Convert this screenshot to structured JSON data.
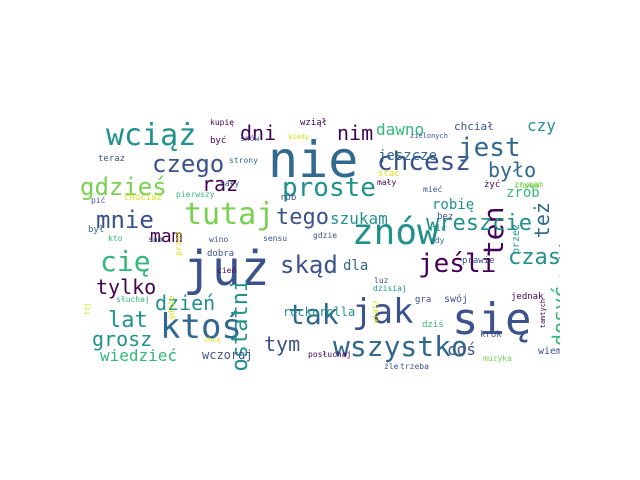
{
  "title": "Word cloud (Polish words)",
  "palette": {
    "dark_purple": "#440154",
    "indigo": "#3b528b",
    "blue": "#31688e",
    "teal": "#21918c",
    "green": "#35b779",
    "lime": "#7ad151",
    "yellow": "#d8e219"
  },
  "words": [
    {
      "text": "nie",
      "color": "#31688e",
      "rotated": false
    },
    {
      "text": "już",
      "color": "#3b528b",
      "rotated": false
    },
    {
      "text": "się",
      "color": "#3b528b",
      "rotated": false
    },
    {
      "text": "znów",
      "color": "#21918c",
      "rotated": false
    },
    {
      "text": "jak",
      "color": "#3b528b",
      "rotated": false
    },
    {
      "text": "ktoś",
      "color": "#31688e",
      "rotated": false
    },
    {
      "text": "tutaj",
      "color": "#7ad151",
      "rotated": false
    },
    {
      "text": "tak",
      "color": "#31688e",
      "rotated": false
    },
    {
      "text": "wszystko",
      "color": "#31688e",
      "rotated": false
    },
    {
      "text": "wciąż",
      "color": "#21918c",
      "rotated": false
    },
    {
      "text": "proste",
      "color": "#21918c",
      "rotated": false
    },
    {
      "text": "chcesz",
      "color": "#3b528b",
      "rotated": false
    },
    {
      "text": "ten",
      "color": "#440154",
      "rotated": true
    },
    {
      "text": "cię",
      "color": "#35b779",
      "rotated": false
    },
    {
      "text": "jeśli",
      "color": "#440154",
      "rotated": false
    },
    {
      "text": "skąd",
      "color": "#3b528b",
      "rotated": false
    },
    {
      "text": "gdzieś",
      "color": "#7ad151",
      "rotated": false
    },
    {
      "text": "mnie",
      "color": "#3b528b",
      "rotated": false
    },
    {
      "text": "czego",
      "color": "#3b528b",
      "rotated": false
    },
    {
      "text": "jest",
      "color": "#31688e",
      "rotated": false
    },
    {
      "text": "raz",
      "color": "#440154",
      "rotated": false
    },
    {
      "text": "ostatni",
      "color": "#21918c",
      "rotated": true
    },
    {
      "text": "wreszcie",
      "color": "#21918c",
      "rotated": false
    },
    {
      "text": "lat",
      "color": "#21918c",
      "rotated": false
    },
    {
      "text": "tego",
      "color": "#3b528b",
      "rotated": false
    },
    {
      "text": "czas",
      "color": "#21918c",
      "rotated": false
    },
    {
      "text": "też",
      "color": "#31688e",
      "rotated": true
    },
    {
      "text": "dosyć",
      "color": "#35b779",
      "rotated": true
    },
    {
      "text": "nim",
      "color": "#440154",
      "rotated": false
    },
    {
      "text": "dni",
      "color": "#440154",
      "rotated": false
    },
    {
      "text": "tylko",
      "color": "#440154",
      "rotated": false
    },
    {
      "text": "dzień",
      "color": "#21918c",
      "rotated": false
    },
    {
      "text": "grosz",
      "color": "#21918c",
      "rotated": false
    },
    {
      "text": "tym",
      "color": "#3b528b",
      "rotated": false
    },
    {
      "text": "było",
      "color": "#31688e",
      "rotated": false
    },
    {
      "text": "mam",
      "color": "#440154",
      "rotated": false
    },
    {
      "text": "czy",
      "color": "#21918c",
      "rotated": false
    },
    {
      "text": "dawno",
      "color": "#35b779",
      "rotated": false
    },
    {
      "text": "szukam",
      "color": "#21918c",
      "rotated": false
    },
    {
      "text": "wiedzieć",
      "color": "#35b779",
      "rotated": false
    },
    {
      "text": "coś",
      "color": "#3b528b",
      "rotated": false
    },
    {
      "text": "dla",
      "color": "#31688e",
      "rotated": false
    },
    {
      "text": "robię",
      "color": "#21918c",
      "rotated": false
    },
    {
      "text": "takie",
      "color": "#31688e",
      "rotated": true
    },
    {
      "text": "jeszcze",
      "color": "#31688e",
      "rotated": false
    },
    {
      "text": "zrób",
      "color": "#35b779",
      "rotated": false
    },
    {
      "text": "rocknrolla",
      "color": "#21918c",
      "rotated": false
    },
    {
      "text": "wczoraj",
      "color": "#3b528b",
      "rotated": false
    },
    {
      "text": "chciał",
      "color": "#3b528b",
      "rotated": false
    },
    {
      "text": "wziął",
      "color": "#440154",
      "rotated": false
    },
    {
      "text": "kupię",
      "color": "#440154",
      "rotated": false
    },
    {
      "text": "być",
      "color": "#440154",
      "rotated": false
    },
    {
      "text": "snów",
      "color": "#3b528b",
      "rotated": false
    },
    {
      "text": "strony",
      "color": "#31688e",
      "rotated": false
    },
    {
      "text": "teraz",
      "color": "#3b528b",
      "rotated": false
    },
    {
      "text": "cały",
      "color": "#3b528b",
      "rotated": false
    },
    {
      "text": "pierwszy",
      "color": "#35b779",
      "rotated": false
    },
    {
      "text": "chociaż",
      "color": "#d8e219",
      "rotated": false
    },
    {
      "text": "pić",
      "color": "#3b528b",
      "rotated": false
    },
    {
      "text": "rób",
      "color": "#3b528b",
      "rotated": false
    },
    {
      "text": "był",
      "color": "#31688e",
      "rotated": false
    },
    {
      "text": "kto",
      "color": "#35b779",
      "rotated": false
    },
    {
      "text": "sam",
      "color": "#3b528b",
      "rotated": false
    },
    {
      "text": "wino",
      "color": "#3b528b",
      "rotated": false
    },
    {
      "text": "sensu",
      "color": "#3b528b",
      "rotated": false
    },
    {
      "text": "gdzie",
      "color": "#3b528b",
      "rotated": false
    },
    {
      "text": "dobra",
      "color": "#3b528b",
      "rotated": false
    },
    {
      "text": "cień",
      "color": "#440154",
      "rotated": false
    },
    {
      "text": "słuchaj",
      "color": "#35b779",
      "rotated": false
    },
    {
      "text": "posłuchaj",
      "color": "#440154",
      "rotated": false
    },
    {
      "text": "dzisiaj",
      "color": "#21918c",
      "rotated": false
    },
    {
      "text": "dziś",
      "color": "#35b779",
      "rotated": false
    },
    {
      "text": "gra",
      "color": "#3b528b",
      "rotated": false
    },
    {
      "text": "swój",
      "color": "#3b528b",
      "rotated": false
    },
    {
      "text": "jednak",
      "color": "#440154",
      "rotated": false
    },
    {
      "text": "krok",
      "color": "#3b528b",
      "rotated": false
    },
    {
      "text": "muzyka",
      "color": "#7ad151",
      "rotated": false
    },
    {
      "text": "wiem",
      "color": "#3b528b",
      "rotated": false
    },
    {
      "text": "źle",
      "color": "#3b528b",
      "rotated": false
    },
    {
      "text": "trzeba",
      "color": "#3b528b",
      "rotated": false
    },
    {
      "text": "prawie",
      "color": "#3b528b",
      "rotated": false
    },
    {
      "text": "nic",
      "color": "#21918c",
      "rotated": false
    },
    {
      "text": "gdy",
      "color": "#31688e",
      "rotated": false
    },
    {
      "text": "przez",
      "color": "#21918c",
      "rotated": true
    },
    {
      "text": "bez",
      "color": "#3b528b",
      "rotated": false
    },
    {
      "text": "mieć",
      "color": "#3b528b",
      "rotated": false
    },
    {
      "text": "stać",
      "color": "#d8e219",
      "rotated": false
    },
    {
      "text": "mały",
      "color": "#440154",
      "rotated": false
    },
    {
      "text": "żyć",
      "color": "#440154",
      "rotated": false
    },
    {
      "text": "chyba",
      "color": "#7ad151",
      "rotated": false
    },
    {
      "text": "zrywam",
      "color": "#7ad151",
      "rotated": false
    },
    {
      "text": "zielonych",
      "color": "#3b528b",
      "rotated": false
    },
    {
      "text": "kiedy",
      "color": "#d8e219",
      "rotated": false
    },
    {
      "text": "chcę",
      "color": "#d8e219",
      "rotated": false
    },
    {
      "text": "luz",
      "color": "#3b528b",
      "rotated": false
    },
    {
      "text": "gdzie",
      "color": "#d8e219",
      "rotated": true
    },
    {
      "text": "przed",
      "color": "#d8e219",
      "rotated": true
    },
    {
      "text": "wiatr",
      "color": "#d8e219",
      "rotated": true
    },
    {
      "text": "tamtych",
      "color": "#440154",
      "rotated": true
    },
    {
      "text": "tej",
      "color": "#d8e219",
      "rotated": true
    }
  ]
}
